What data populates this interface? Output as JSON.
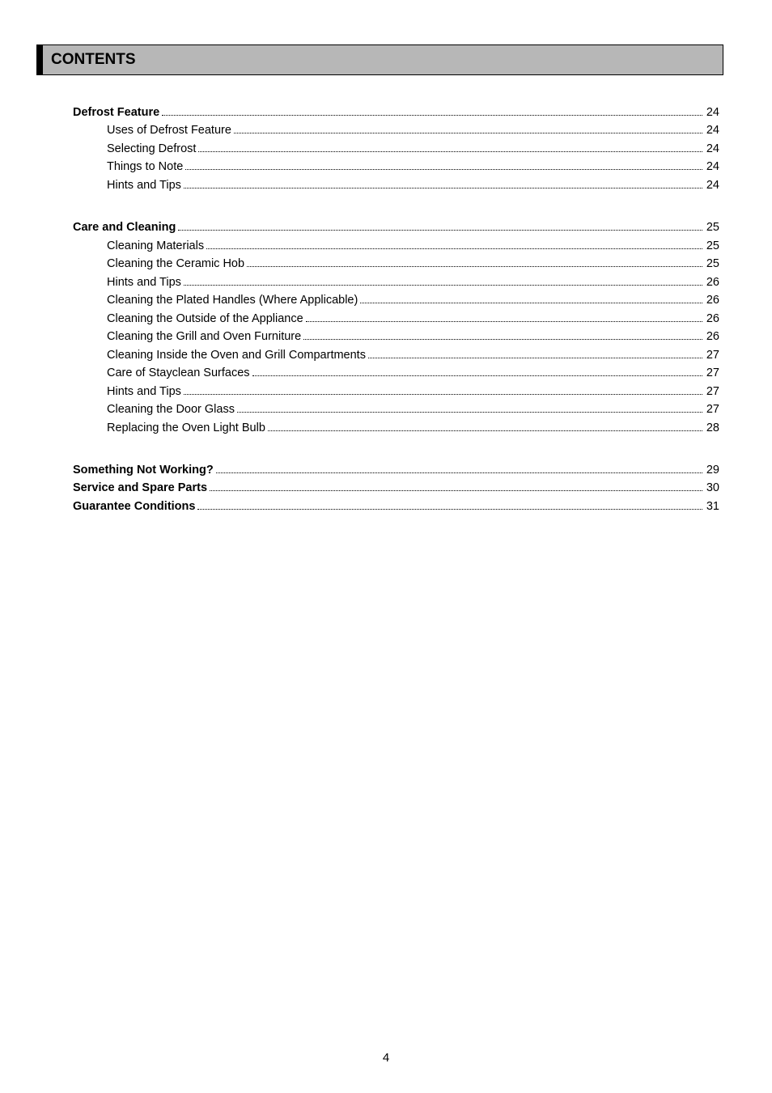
{
  "header": {
    "title": "CONTENTS"
  },
  "page_number": "4",
  "sections": [
    {
      "rows": [
        {
          "label": "Defrost Feature",
          "page": "24",
          "bold": true,
          "indent": false
        },
        {
          "label": "Uses of Defrost Feature",
          "page": "24",
          "bold": false,
          "indent": true
        },
        {
          "label": "Selecting Defrost",
          "page": "24",
          "bold": false,
          "indent": true
        },
        {
          "label": "Things to Note",
          "page": "24",
          "bold": false,
          "indent": true
        },
        {
          "label": "Hints and Tips",
          "page": "24",
          "bold": false,
          "indent": true
        }
      ]
    },
    {
      "rows": [
        {
          "label": "Care and Cleaning",
          "page": "25",
          "bold": true,
          "indent": false
        },
        {
          "label": "Cleaning Materials",
          "page": "25",
          "bold": false,
          "indent": true
        },
        {
          "label": "Cleaning the Ceramic Hob",
          "page": "25",
          "bold": false,
          "indent": true
        },
        {
          "label": "Hints and Tips",
          "page": "26",
          "bold": false,
          "indent": true
        },
        {
          "label": "Cleaning the Plated Handles (Where Applicable)",
          "page": "26",
          "bold": false,
          "indent": true
        },
        {
          "label": "Cleaning the Outside of the Appliance",
          "page": "26",
          "bold": false,
          "indent": true
        },
        {
          "label": "Cleaning the Grill and Oven Furniture",
          "page": "26",
          "bold": false,
          "indent": true
        },
        {
          "label": "Cleaning Inside the Oven and Grill Compartments",
          "page": "27",
          "bold": false,
          "indent": true
        },
        {
          "label": "Care of Stayclean Surfaces",
          "page": "27",
          "bold": false,
          "indent": true
        },
        {
          "label": "Hints and Tips",
          "page": "27",
          "bold": false,
          "indent": true
        },
        {
          "label": "Cleaning the Door Glass",
          "page": "27",
          "bold": false,
          "indent": true
        },
        {
          "label": "Replacing the Oven Light Bulb",
          "page": "28",
          "bold": false,
          "indent": true
        }
      ]
    },
    {
      "rows": [
        {
          "label": "Something Not Working?",
          "page": "29",
          "bold": true,
          "indent": false
        },
        {
          "label": "Service and Spare Parts",
          "page": "30",
          "bold": true,
          "indent": false
        },
        {
          "label": "Guarantee Conditions",
          "page": "31",
          "bold": true,
          "indent": false
        }
      ]
    }
  ]
}
